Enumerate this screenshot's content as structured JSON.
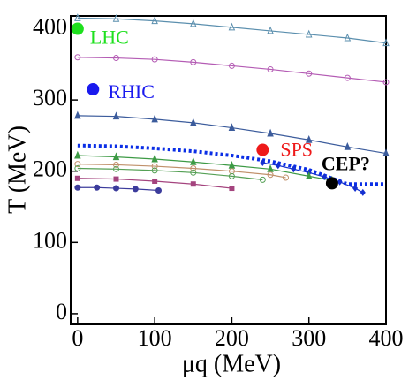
{
  "chart_data": {
    "type": "line",
    "x_label": "μq (MeV)",
    "y_label": "T (MeV)",
    "xlim": [
      -9,
      400
    ],
    "ylim": [
      -15,
      418
    ],
    "xticks": [
      0,
      100,
      200,
      300,
      400
    ],
    "yticks": [
      0,
      100,
      200,
      300,
      400
    ],
    "series": [
      {
        "color": "#5b8fae",
        "marker": "triangle-open",
        "x": [
          0,
          50,
          100,
          150,
          200,
          250,
          300,
          350,
          400
        ],
        "values": [
          415,
          414,
          411,
          407,
          402,
          397,
          392,
          387,
          380
        ]
      },
      {
        "color": "#b45cb4",
        "marker": "circle-open",
        "x": [
          0,
          50,
          100,
          150,
          200,
          250,
          300,
          350,
          400
        ],
        "values": [
          360,
          359,
          357,
          353,
          348,
          343,
          337,
          331,
          325
        ]
      },
      {
        "color": "#3c5c9c",
        "marker": "triangle",
        "x": [
          0,
          50,
          100,
          150,
          200,
          250,
          300,
          350,
          400
        ],
        "values": [
          278,
          277,
          273,
          268,
          261,
          253,
          244,
          234,
          225
        ]
      },
      {
        "color": "#0a2ee6",
        "marker": "none",
        "line_style": "dotted",
        "x": [
          0,
          50,
          100,
          150,
          200,
          250,
          300,
          330,
          350,
          400
        ],
        "values": [
          236,
          235,
          232,
          228,
          222,
          214,
          202,
          190,
          182,
          182
        ]
      },
      {
        "color": "#1530d0",
        "marker": "diamond",
        "x": [
          240,
          260,
          280,
          300,
          320,
          340,
          360,
          370
        ],
        "values": [
          212,
          208,
          203,
          198,
          192,
          185,
          176,
          170
        ]
      },
      {
        "color": "#3d9a45",
        "marker": "triangle",
        "x": [
          0,
          50,
          100,
          150,
          200,
          250,
          300,
          330
        ],
        "values": [
          222,
          220,
          217,
          213,
          208,
          203,
          193,
          187
        ]
      },
      {
        "color": "#c0906a",
        "marker": "circle-open",
        "x": [
          0,
          50,
          100,
          150,
          200,
          250,
          270
        ],
        "values": [
          210,
          209,
          207,
          204,
          200,
          195,
          191
        ]
      },
      {
        "color": "#55a055",
        "marker": "circle-open",
        "x": [
          0,
          50,
          100,
          150,
          200,
          240
        ],
        "values": [
          204,
          203,
          201,
          198,
          193,
          188
        ]
      },
      {
        "color": "#a4447e",
        "marker": "square",
        "x": [
          0,
          50,
          100,
          150,
          200
        ],
        "values": [
          190,
          189,
          186,
          182,
          176
        ]
      },
      {
        "color": "#3c3c9c",
        "marker": "circle",
        "x": [
          0,
          25,
          50,
          75,
          105
        ],
        "values": [
          177,
          177,
          176,
          175,
          173
        ]
      }
    ],
    "annotations": [
      {
        "text": "LHC",
        "x": 0,
        "y": 400,
        "color": "#1ee01e"
      },
      {
        "text": "RHIC",
        "x": 20,
        "y": 315,
        "color": "#1a1aee"
      },
      {
        "text": "SPS",
        "x": 240,
        "y": 230,
        "color": "#ee1a1a"
      },
      {
        "text": "CEP?",
        "x": 330,
        "y": 183,
        "color": "#000000"
      }
    ]
  }
}
